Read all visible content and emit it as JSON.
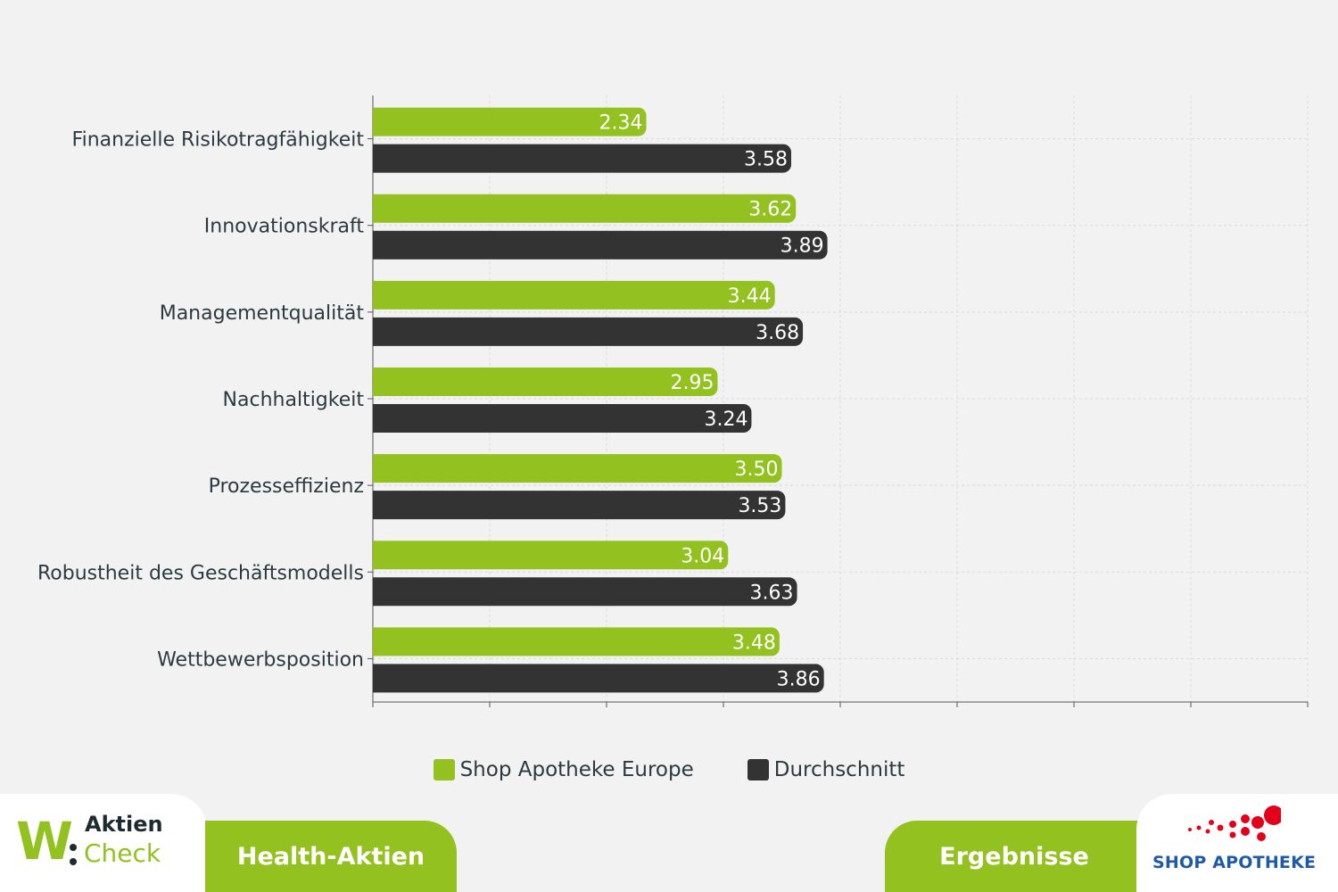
{
  "chart_data": {
    "type": "bar",
    "orientation": "horizontal",
    "categories": [
      "Finanzielle Risikotragfähigkeit",
      "Innovationskraft",
      "Managementqualität",
      "Nachhaltigkeit",
      "Prozesseffizienz",
      "Robustheit des Geschäftsmodells",
      "Wettbewerbsposition"
    ],
    "series": [
      {
        "name": "Shop Apotheke Europe",
        "color": "#93c11f",
        "values": [
          2.34,
          3.62,
          3.44,
          2.95,
          3.5,
          3.04,
          3.48
        ],
        "labels": [
          "2.34",
          "3.62",
          "3.44",
          "2.95",
          "3.50",
          "3.04",
          "3.48"
        ]
      },
      {
        "name": "Durchschnitt",
        "color": "#333333",
        "values": [
          3.58,
          3.89,
          3.68,
          3.24,
          3.53,
          3.63,
          3.86
        ],
        "labels": [
          "3.58",
          "3.89",
          "3.68",
          "3.24",
          "3.53",
          "3.63",
          "3.86"
        ]
      }
    ],
    "xlim": [
      0,
      8
    ],
    "grid": true,
    "legend_position": "bottom-center"
  },
  "legend": {
    "items": [
      {
        "label": "Shop Apotheke Europe",
        "color": "#93c11f"
      },
      {
        "label": "Durchschnitt",
        "color": "#333333"
      }
    ]
  },
  "footer": {
    "logo": {
      "aktien": "Aktien",
      "check": "Check"
    },
    "tab_left": "Health-Aktien",
    "tab_right": "Ergebnisse",
    "brand": "SHOP APOTHEKE"
  }
}
